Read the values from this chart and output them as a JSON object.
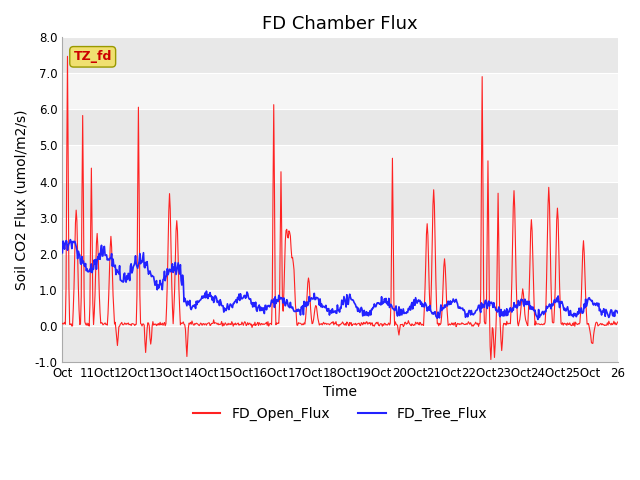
{
  "title": "FD Chamber Flux",
  "xlabel": "Time",
  "ylabel": "Soil CO2 Flux (umol/m2/s)",
  "ylim": [
    -1.0,
    8.0
  ],
  "yticks": [
    -1.0,
    0.0,
    1.0,
    2.0,
    3.0,
    4.0,
    5.0,
    6.0,
    7.0,
    8.0
  ],
  "xtick_labels_short": [
    "Oct",
    "11Oct",
    "12Oct",
    "13Oct",
    "14Oct",
    "15Oct",
    "16Oct",
    "17Oct",
    "18Oct",
    "19Oct",
    "20Oct",
    "21Oct",
    "22Oct",
    "23Oct",
    "24Oct",
    "25Oct",
    "26"
  ],
  "band_colors": [
    "#e8e8e8",
    "#f5f5f5"
  ],
  "band_edges": [
    -1.0,
    0.0,
    1.0,
    2.0,
    3.0,
    4.0,
    5.0,
    6.0,
    7.0,
    8.0
  ],
  "open_color": "#ff2222",
  "tree_color": "#2222ff",
  "legend_open": "FD_Open_Flux",
  "legend_tree": "FD_Tree_Flux",
  "tz_label": "TZ_fd",
  "tz_bg": "#f0e070",
  "tz_text_color": "#cc0000",
  "background_color": "#ffffff",
  "plot_bg": "#ebebeb",
  "grid_color": "#ffffff",
  "title_fontsize": 13,
  "axis_label_fontsize": 10,
  "tick_fontsize": 8.5,
  "legend_fontsize": 10
}
